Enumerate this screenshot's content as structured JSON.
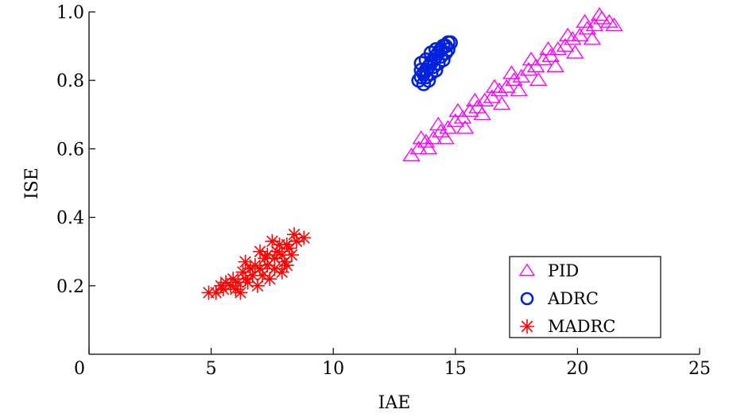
{
  "chart_data": {
    "type": "scatter",
    "title": "",
    "xlabel": "IAE",
    "ylabel": "ISE",
    "xlim": [
      0,
      25
    ],
    "ylim": [
      0,
      1.0
    ],
    "xticks": [
      {
        "value": 0,
        "label": "0"
      },
      {
        "value": 5,
        "label": "5"
      },
      {
        "value": 10,
        "label": "10"
      },
      {
        "value": 15,
        "label": "15"
      },
      {
        "value": 20,
        "label": "20"
      },
      {
        "value": 25,
        "label": "25"
      }
    ],
    "yticks": [
      {
        "value": 0.2,
        "label": "0.2"
      },
      {
        "value": 0.4,
        "label": "0.4"
      },
      {
        "value": 0.6,
        "label": "0.6"
      },
      {
        "value": 0.8,
        "label": "0.8"
      },
      {
        "value": 1.0,
        "label": "1.0"
      }
    ],
    "grid": false,
    "legend_position": "bottom-right",
    "series": [
      {
        "name": "PID",
        "marker": "triangle",
        "color": "#ff00ff",
        "points": [
          [
            13.2,
            0.58
          ],
          [
            13.5,
            0.6
          ],
          [
            13.8,
            0.62
          ],
          [
            14.1,
            0.63
          ],
          [
            14.4,
            0.65
          ],
          [
            14.7,
            0.66
          ],
          [
            15.0,
            0.68
          ],
          [
            15.3,
            0.69
          ],
          [
            15.6,
            0.71
          ],
          [
            15.9,
            0.72
          ],
          [
            16.2,
            0.74
          ],
          [
            16.5,
            0.75
          ],
          [
            16.8,
            0.77
          ],
          [
            17.1,
            0.78
          ],
          [
            17.4,
            0.8
          ],
          [
            17.7,
            0.81
          ],
          [
            18.0,
            0.83
          ],
          [
            18.3,
            0.84
          ],
          [
            18.6,
            0.86
          ],
          [
            18.9,
            0.87
          ],
          [
            19.2,
            0.89
          ],
          [
            19.5,
            0.9
          ],
          [
            19.8,
            0.92
          ],
          [
            20.1,
            0.93
          ],
          [
            20.4,
            0.95
          ],
          [
            20.7,
            0.96
          ],
          [
            21.0,
            0.98
          ],
          [
            21.3,
            0.97
          ],
          [
            20.9,
            0.99
          ],
          [
            21.5,
            0.96
          ],
          [
            13.9,
            0.6
          ],
          [
            14.6,
            0.63
          ],
          [
            15.4,
            0.66
          ],
          [
            16.1,
            0.7
          ],
          [
            16.9,
            0.73
          ],
          [
            17.6,
            0.77
          ],
          [
            18.4,
            0.8
          ],
          [
            19.1,
            0.84
          ],
          [
            19.9,
            0.88
          ],
          [
            20.6,
            0.92
          ],
          [
            13.6,
            0.63
          ],
          [
            14.3,
            0.67
          ],
          [
            15.1,
            0.71
          ],
          [
            15.8,
            0.74
          ],
          [
            16.6,
            0.78
          ],
          [
            17.3,
            0.82
          ],
          [
            18.1,
            0.86
          ],
          [
            18.8,
            0.89
          ],
          [
            19.6,
            0.93
          ],
          [
            20.3,
            0.97
          ]
        ]
      },
      {
        "name": "ADRC",
        "marker": "circle",
        "color": "#0022dd",
        "points": [
          [
            13.5,
            0.8
          ],
          [
            13.6,
            0.81
          ],
          [
            13.7,
            0.82
          ],
          [
            13.8,
            0.83
          ],
          [
            13.9,
            0.84
          ],
          [
            14.0,
            0.85
          ],
          [
            14.1,
            0.86
          ],
          [
            14.2,
            0.87
          ],
          [
            14.3,
            0.88
          ],
          [
            14.4,
            0.89
          ],
          [
            14.5,
            0.9
          ],
          [
            14.6,
            0.9
          ],
          [
            14.7,
            0.91
          ],
          [
            14.8,
            0.91
          ],
          [
            13.6,
            0.83
          ],
          [
            13.8,
            0.86
          ],
          [
            14.0,
            0.88
          ],
          [
            14.2,
            0.89
          ],
          [
            13.7,
            0.79
          ],
          [
            14.0,
            0.82
          ],
          [
            14.3,
            0.85
          ],
          [
            14.6,
            0.88
          ],
          [
            13.9,
            0.8
          ],
          [
            14.2,
            0.83
          ],
          [
            14.5,
            0.86
          ],
          [
            14.1,
            0.84
          ],
          [
            13.8,
            0.81
          ],
          [
            14.4,
            0.87
          ],
          [
            13.6,
            0.85
          ],
          [
            14.7,
            0.89
          ]
        ]
      },
      {
        "name": "MADRC",
        "marker": "asterisk",
        "color": "#ff0000",
        "points": [
          [
            4.9,
            0.18
          ],
          [
            5.2,
            0.18
          ],
          [
            5.5,
            0.19
          ],
          [
            5.8,
            0.2
          ],
          [
            6.1,
            0.21
          ],
          [
            6.4,
            0.22
          ],
          [
            6.7,
            0.23
          ],
          [
            7.0,
            0.25
          ],
          [
            7.3,
            0.26
          ],
          [
            7.6,
            0.28
          ],
          [
            7.9,
            0.29
          ],
          [
            8.2,
            0.31
          ],
          [
            8.5,
            0.33
          ],
          [
            8.8,
            0.34
          ],
          [
            5.4,
            0.2
          ],
          [
            5.9,
            0.22
          ],
          [
            6.3,
            0.24
          ],
          [
            6.8,
            0.26
          ],
          [
            7.2,
            0.28
          ],
          [
            7.7,
            0.3
          ],
          [
            8.1,
            0.32
          ],
          [
            8.4,
            0.35
          ],
          [
            6.0,
            0.19
          ],
          [
            6.5,
            0.21
          ],
          [
            7.1,
            0.23
          ],
          [
            7.6,
            0.25
          ],
          [
            8.0,
            0.27
          ],
          [
            8.3,
            0.29
          ],
          [
            6.2,
            0.18
          ],
          [
            6.9,
            0.2
          ],
          [
            7.4,
            0.22
          ],
          [
            7.9,
            0.24
          ],
          [
            8.1,
            0.26
          ],
          [
            5.6,
            0.21
          ],
          [
            6.6,
            0.25
          ],
          [
            7.3,
            0.29
          ],
          [
            7.8,
            0.32
          ],
          [
            6.4,
            0.27
          ],
          [
            7.0,
            0.3
          ],
          [
            7.5,
            0.33
          ]
        ]
      }
    ]
  }
}
